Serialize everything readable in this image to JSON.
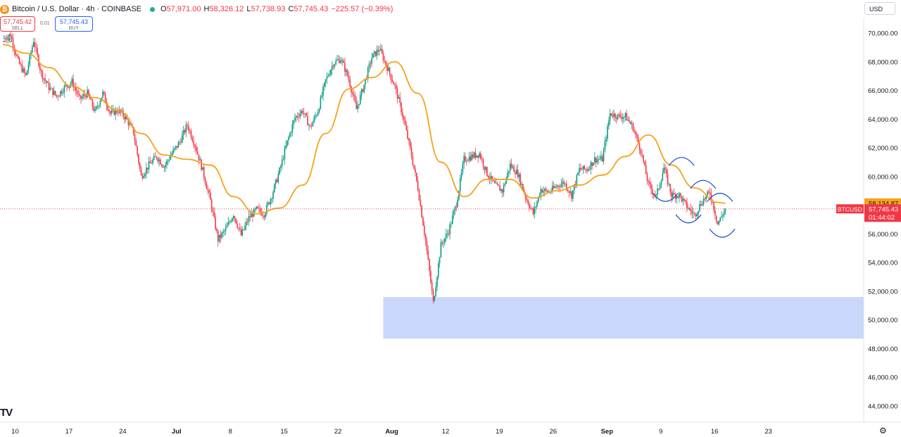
{
  "header": {
    "icon": "bitcoin-icon",
    "symbol": "Bitcoin / U.S. Dollar · 4h · COINBASE",
    "open_label": "O",
    "open": "57,971.00",
    "high_label": "H",
    "high": "58,326.12",
    "low_label": "L",
    "low": "57,738.93",
    "close_label": "C",
    "close": "57,745.43",
    "change": "−225.57 (−0.39%)",
    "status_color": "#22ab94"
  },
  "trade": {
    "sell_price": "57,745.42",
    "sell_label": "SELL",
    "spread": "0.01",
    "buy_price": "57,745.43",
    "buy_label": "BUY"
  },
  "indicator_count": "6",
  "currency": "USD",
  "logo": "TV",
  "chart_data": {
    "type": "candlestick",
    "x_tick_labels": [
      "10",
      "17",
      "24",
      "Jul",
      "8",
      "15",
      "22",
      "Aug",
      "12",
      "19",
      "26",
      "Sep",
      "9",
      "16",
      "23"
    ],
    "y_tick_labels": [
      "70,000.00",
      "68,000.00",
      "66,000.00",
      "64,000.00",
      "62,000.00",
      "60,000.00",
      "58,000.00",
      "56,000.00",
      "54,000.00",
      "52,000.00",
      "50,000.00",
      "48,000.00",
      "46,000.00",
      "44,000.00"
    ],
    "ylim": [
      43200,
      71200
    ],
    "colors": {
      "up": "#089981",
      "down": "#f23645",
      "ma": "#f7a21b",
      "zone": "#c9d7fb",
      "curves": "#1848cc"
    },
    "current_label": {
      "symbol": "BTCUSD",
      "price": "57,745.43",
      "countdown": "01:44:02",
      "value": 57745.43
    },
    "ma_label": {
      "price": "58,134.87",
      "value": 58134.87
    },
    "zone": {
      "from": 48700,
      "to": 51600,
      "start_day": 49.5
    },
    "price_path": [
      [
        0,
        69600
      ],
      [
        1,
        69900
      ],
      [
        2,
        68000
      ],
      [
        3,
        67000
      ],
      [
        4,
        69500
      ],
      [
        5,
        67200
      ],
      [
        6,
        66200
      ],
      [
        7,
        65600
      ],
      [
        8,
        66200
      ],
      [
        9,
        66600
      ],
      [
        10,
        65400
      ],
      [
        11,
        65800
      ],
      [
        12,
        64500
      ],
      [
        13,
        65800
      ],
      [
        14,
        64400
      ],
      [
        15,
        64600
      ],
      [
        16,
        64100
      ],
      [
        17,
        63100
      ],
      [
        18,
        60000
      ],
      [
        19,
        60800
      ],
      [
        20,
        61400
      ],
      [
        21,
        60700
      ],
      [
        22,
        61600
      ],
      [
        23,
        62400
      ],
      [
        24,
        63600
      ],
      [
        25,
        62200
      ],
      [
        26,
        60400
      ],
      [
        27,
        58300
      ],
      [
        28,
        55600
      ],
      [
        29,
        56300
      ],
      [
        30,
        57400
      ],
      [
        31,
        55900
      ],
      [
        32,
        57100
      ],
      [
        33,
        57700
      ],
      [
        34,
        57400
      ],
      [
        35,
        58700
      ],
      [
        36,
        60400
      ],
      [
        37,
        62400
      ],
      [
        38,
        64100
      ],
      [
        39,
        64600
      ],
      [
        40,
        63400
      ],
      [
        41,
        64600
      ],
      [
        42,
        66700
      ],
      [
        43,
        67900
      ],
      [
        44,
        68200
      ],
      [
        45,
        66800
      ],
      [
        46,
        64700
      ],
      [
        47,
        66400
      ],
      [
        48,
        68300
      ],
      [
        49,
        68900
      ],
      [
        50,
        67600
      ],
      [
        51,
        66300
      ],
      [
        52,
        64300
      ],
      [
        53,
        61900
      ],
      [
        54,
        59200
      ],
      [
        55,
        55500
      ],
      [
        56,
        51200
      ],
      [
        57,
        55200
      ],
      [
        58,
        56200
      ],
      [
        59,
        58100
      ],
      [
        60,
        61200
      ],
      [
        61,
        61400
      ],
      [
        62,
        61600
      ],
      [
        63,
        60200
      ],
      [
        64,
        59400
      ],
      [
        65,
        59000
      ],
      [
        66,
        60800
      ],
      [
        67,
        60200
      ],
      [
        68,
        58600
      ],
      [
        69,
        57400
      ],
      [
        70,
        59100
      ],
      [
        71,
        58900
      ],
      [
        72,
        59300
      ],
      [
        73,
        59600
      ],
      [
        74,
        58700
      ],
      [
        75,
        60500
      ],
      [
        76,
        60500
      ],
      [
        77,
        61200
      ],
      [
        78,
        61200
      ],
      [
        79,
        64400
      ],
      [
        80,
        64200
      ],
      [
        81,
        64200
      ],
      [
        82,
        63400
      ],
      [
        83,
        61800
      ],
      [
        84,
        59400
      ],
      [
        85,
        58600
      ],
      [
        86,
        60600
      ],
      [
        87,
        58700
      ],
      [
        88,
        58700
      ],
      [
        89,
        57900
      ],
      [
        90,
        57300
      ],
      [
        91,
        58300
      ],
      [
        92,
        58900
      ],
      [
        93,
        56700
      ],
      [
        94,
        57745
      ]
    ],
    "moving_average": [
      [
        0,
        69200
      ],
      [
        3,
        68600
      ],
      [
        6,
        67600
      ],
      [
        9,
        66300
      ],
      [
        12,
        65500
      ],
      [
        15,
        64600
      ],
      [
        18,
        63000
      ],
      [
        21,
        61500
      ],
      [
        24,
        61200
      ],
      [
        27,
        60800
      ],
      [
        30,
        58600
      ],
      [
        33,
        57400
      ],
      [
        36,
        57800
      ],
      [
        39,
        59400
      ],
      [
        42,
        63000
      ],
      [
        45,
        66100
      ],
      [
        48,
        66900
      ],
      [
        51,
        68000
      ],
      [
        54,
        65800
      ],
      [
        57,
        61000
      ],
      [
        60,
        58600
      ],
      [
        63,
        59800
      ],
      [
        66,
        59800
      ],
      [
        69,
        58500
      ],
      [
        72,
        59000
      ],
      [
        75,
        59400
      ],
      [
        78,
        60100
      ],
      [
        81,
        61400
      ],
      [
        84,
        62900
      ],
      [
        87,
        60800
      ],
      [
        90,
        59200
      ],
      [
        93,
        58200
      ],
      [
        94,
        58135
      ]
    ],
    "highlight_curves": [
      {
        "day": 86.2,
        "center": 58400,
        "dir": "up-open"
      },
      {
        "day": 88.3,
        "center": 61200,
        "dir": "down-open"
      },
      {
        "day": 89.2,
        "center": 56900,
        "dir": "up-open"
      },
      {
        "day": 91.1,
        "center": 59600,
        "dir": "down-open"
      },
      {
        "day": 93.3,
        "center": 58700,
        "dir": "down-open"
      },
      {
        "day": 93.6,
        "center": 55900,
        "dir": "up-open"
      }
    ]
  }
}
